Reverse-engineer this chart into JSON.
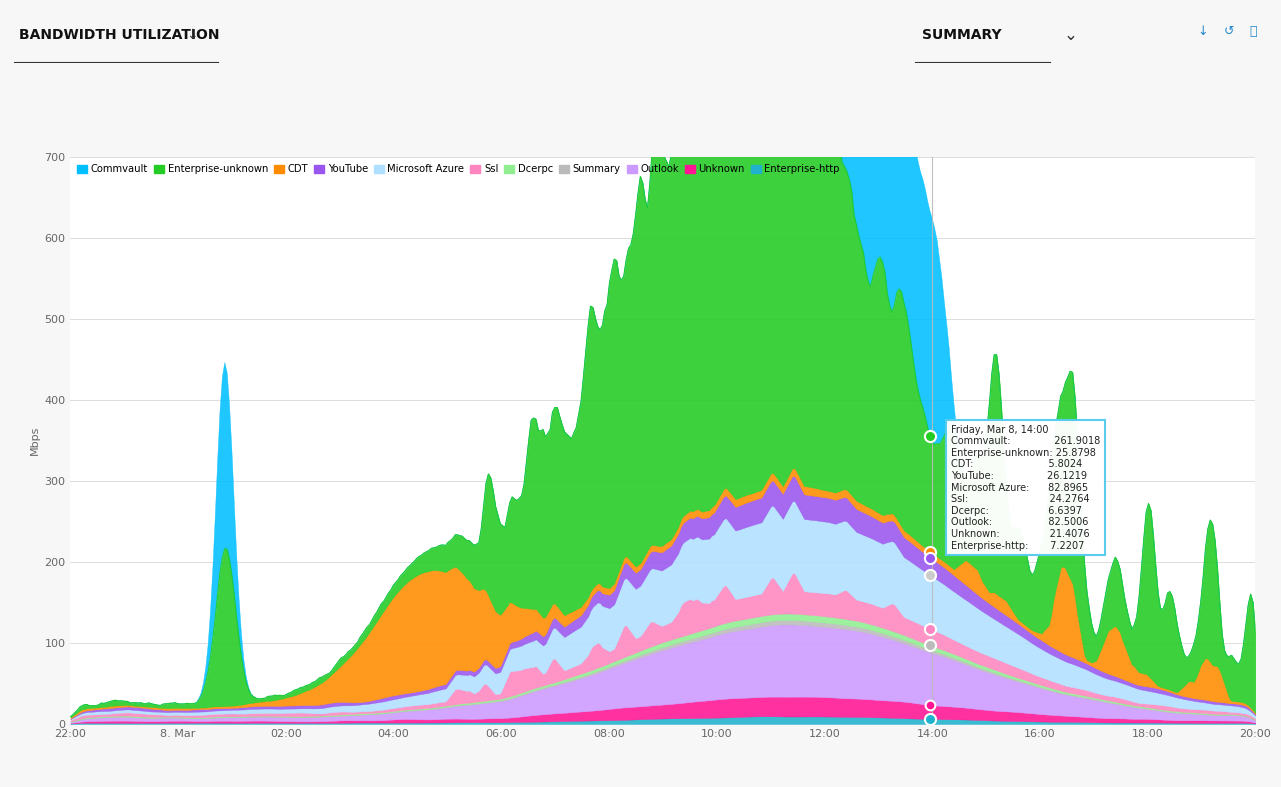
{
  "title": "BANDWIDTH UTILIZATION",
  "summary_label": "SUMMARY",
  "ylabel": "Mbps",
  "ylim": [
    0,
    700
  ],
  "yticks": [
    0,
    100,
    200,
    300,
    400,
    500,
    600,
    700
  ],
  "x_labels": [
    "22:00",
    "8. Mar",
    "02:00",
    "04:00",
    "06:00",
    "08:00",
    "10:00",
    "12:00",
    "14:00",
    "16:00",
    "18:00",
    "20:00"
  ],
  "series_order": [
    {
      "name": "Enterprise-http",
      "color": "#20B2CC"
    },
    {
      "name": "Unknown",
      "color": "#FF1493"
    },
    {
      "name": "Outlook",
      "color": "#CC99FF"
    },
    {
      "name": "Summary",
      "color": "#BBBBBB"
    },
    {
      "name": "Dcerpc",
      "color": "#90EE90"
    },
    {
      "name": "Ssl",
      "color": "#FF85C0"
    },
    {
      "name": "Microsoft Azure",
      "color": "#B0E0FF"
    },
    {
      "name": "YouTube",
      "color": "#9955EE"
    },
    {
      "name": "CDT",
      "color": "#FF8C00"
    },
    {
      "name": "Enterprise-unknown",
      "color": "#22CC22"
    },
    {
      "name": "Commvault",
      "color": "#00BFFF"
    }
  ],
  "legend_order": [
    {
      "name": "Commvault",
      "color": "#00BFFF"
    },
    {
      "name": "Enterprise-unknown",
      "color": "#22CC22"
    },
    {
      "name": "CDT",
      "color": "#FF8C00"
    },
    {
      "name": "YouTube",
      "color": "#9955EE"
    },
    {
      "name": "Microsoft Azure",
      "color": "#B0E0FF"
    },
    {
      "name": "Ssl",
      "color": "#FF85C0"
    },
    {
      "name": "Dcerpc",
      "color": "#90EE90"
    },
    {
      "name": "Summary",
      "color": "#BBBBBB"
    },
    {
      "name": "Outlook",
      "color": "#CC99FF"
    },
    {
      "name": "Unknown",
      "color": "#FF1493"
    },
    {
      "name": "Enterprise-http",
      "color": "#20B2CC"
    }
  ],
  "tooltip": {
    "title": "Friday, Mar 8, 14:00",
    "Commvault": 261.9018,
    "Enterprise-unknown": 25.8798,
    "CDT": 5.8024,
    "YouTube": 26.1219,
    "Microsoft Azure": 82.8965,
    "Ssl": 24.2764,
    "Dcerpc": 6.6397,
    "Outlook": 82.5006,
    "Unknown": 21.4076,
    "Enterprise-http": 7.2207
  },
  "background_color": "#FFFFFF",
  "grid_color": "#DDDDDD",
  "fig_bg": "#F7F7F7"
}
